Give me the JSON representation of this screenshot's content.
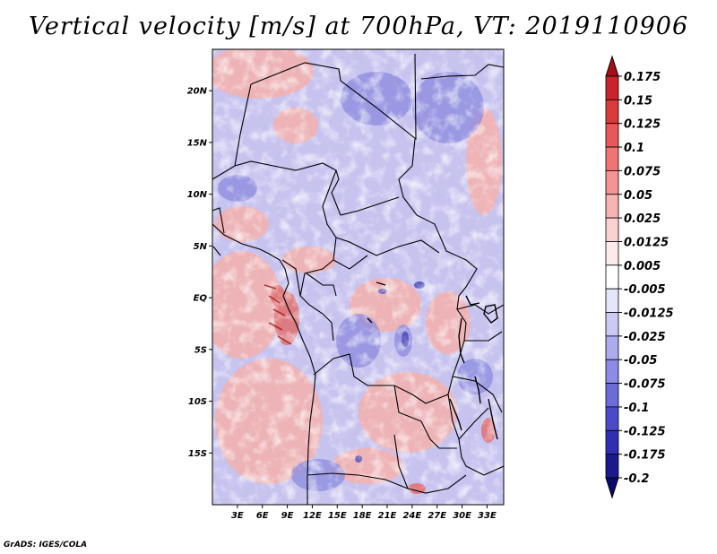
{
  "title": "Vertical velocity [m/s] at 700hPa, VT: 2019110906",
  "credit": "GrADS: IGES/COLA",
  "map": {
    "lon_range": [
      0,
      35
    ],
    "lat_range": [
      -20,
      24
    ],
    "lat_ticks": [
      {
        "value": 20,
        "label": "20N"
      },
      {
        "value": 15,
        "label": "15N"
      },
      {
        "value": 10,
        "label": "10N"
      },
      {
        "value": 5,
        "label": "5N"
      },
      {
        "value": 0,
        "label": "EQ"
      },
      {
        "value": -5,
        "label": "5S"
      },
      {
        "value": -10,
        "label": "10S"
      },
      {
        "value": -15,
        "label": "15S"
      }
    ],
    "lon_ticks": [
      {
        "value": 3,
        "label": "3E"
      },
      {
        "value": 6,
        "label": "6E"
      },
      {
        "value": 9,
        "label": "9E"
      },
      {
        "value": 12,
        "label": "12E"
      },
      {
        "value": 15,
        "label": "15E"
      },
      {
        "value": 18,
        "label": "18E"
      },
      {
        "value": 21,
        "label": "21E"
      },
      {
        "value": 24,
        "label": "24E"
      },
      {
        "value": 27,
        "label": "27E"
      },
      {
        "value": 30,
        "label": "30E"
      },
      {
        "value": 33,
        "label": "33E"
      }
    ]
  },
  "colorbar": {
    "labels": [
      "0.175",
      "0.15",
      "0.125",
      "0.1",
      "0.075",
      "0.05",
      "0.025",
      "0.0125",
      "0.005",
      "-0.005",
      "-0.0125",
      "-0.025",
      "-0.05",
      "-0.075",
      "-0.1",
      "-0.125",
      "-0.175",
      "-0.2"
    ],
    "colors": [
      "#a50f15",
      "#c8242a",
      "#da3b3b",
      "#e85858",
      "#ef7575",
      "#f49494",
      "#f8b3b3",
      "#fbd2d2",
      "#fdeaea",
      "#ffffff",
      "#e6e6fb",
      "#cacaf5",
      "#ababee",
      "#8c8ce6",
      "#6c6cd9",
      "#4b4bc9",
      "#2f2fb1",
      "#1a1a8e",
      "#0b0b6b"
    ]
  }
}
